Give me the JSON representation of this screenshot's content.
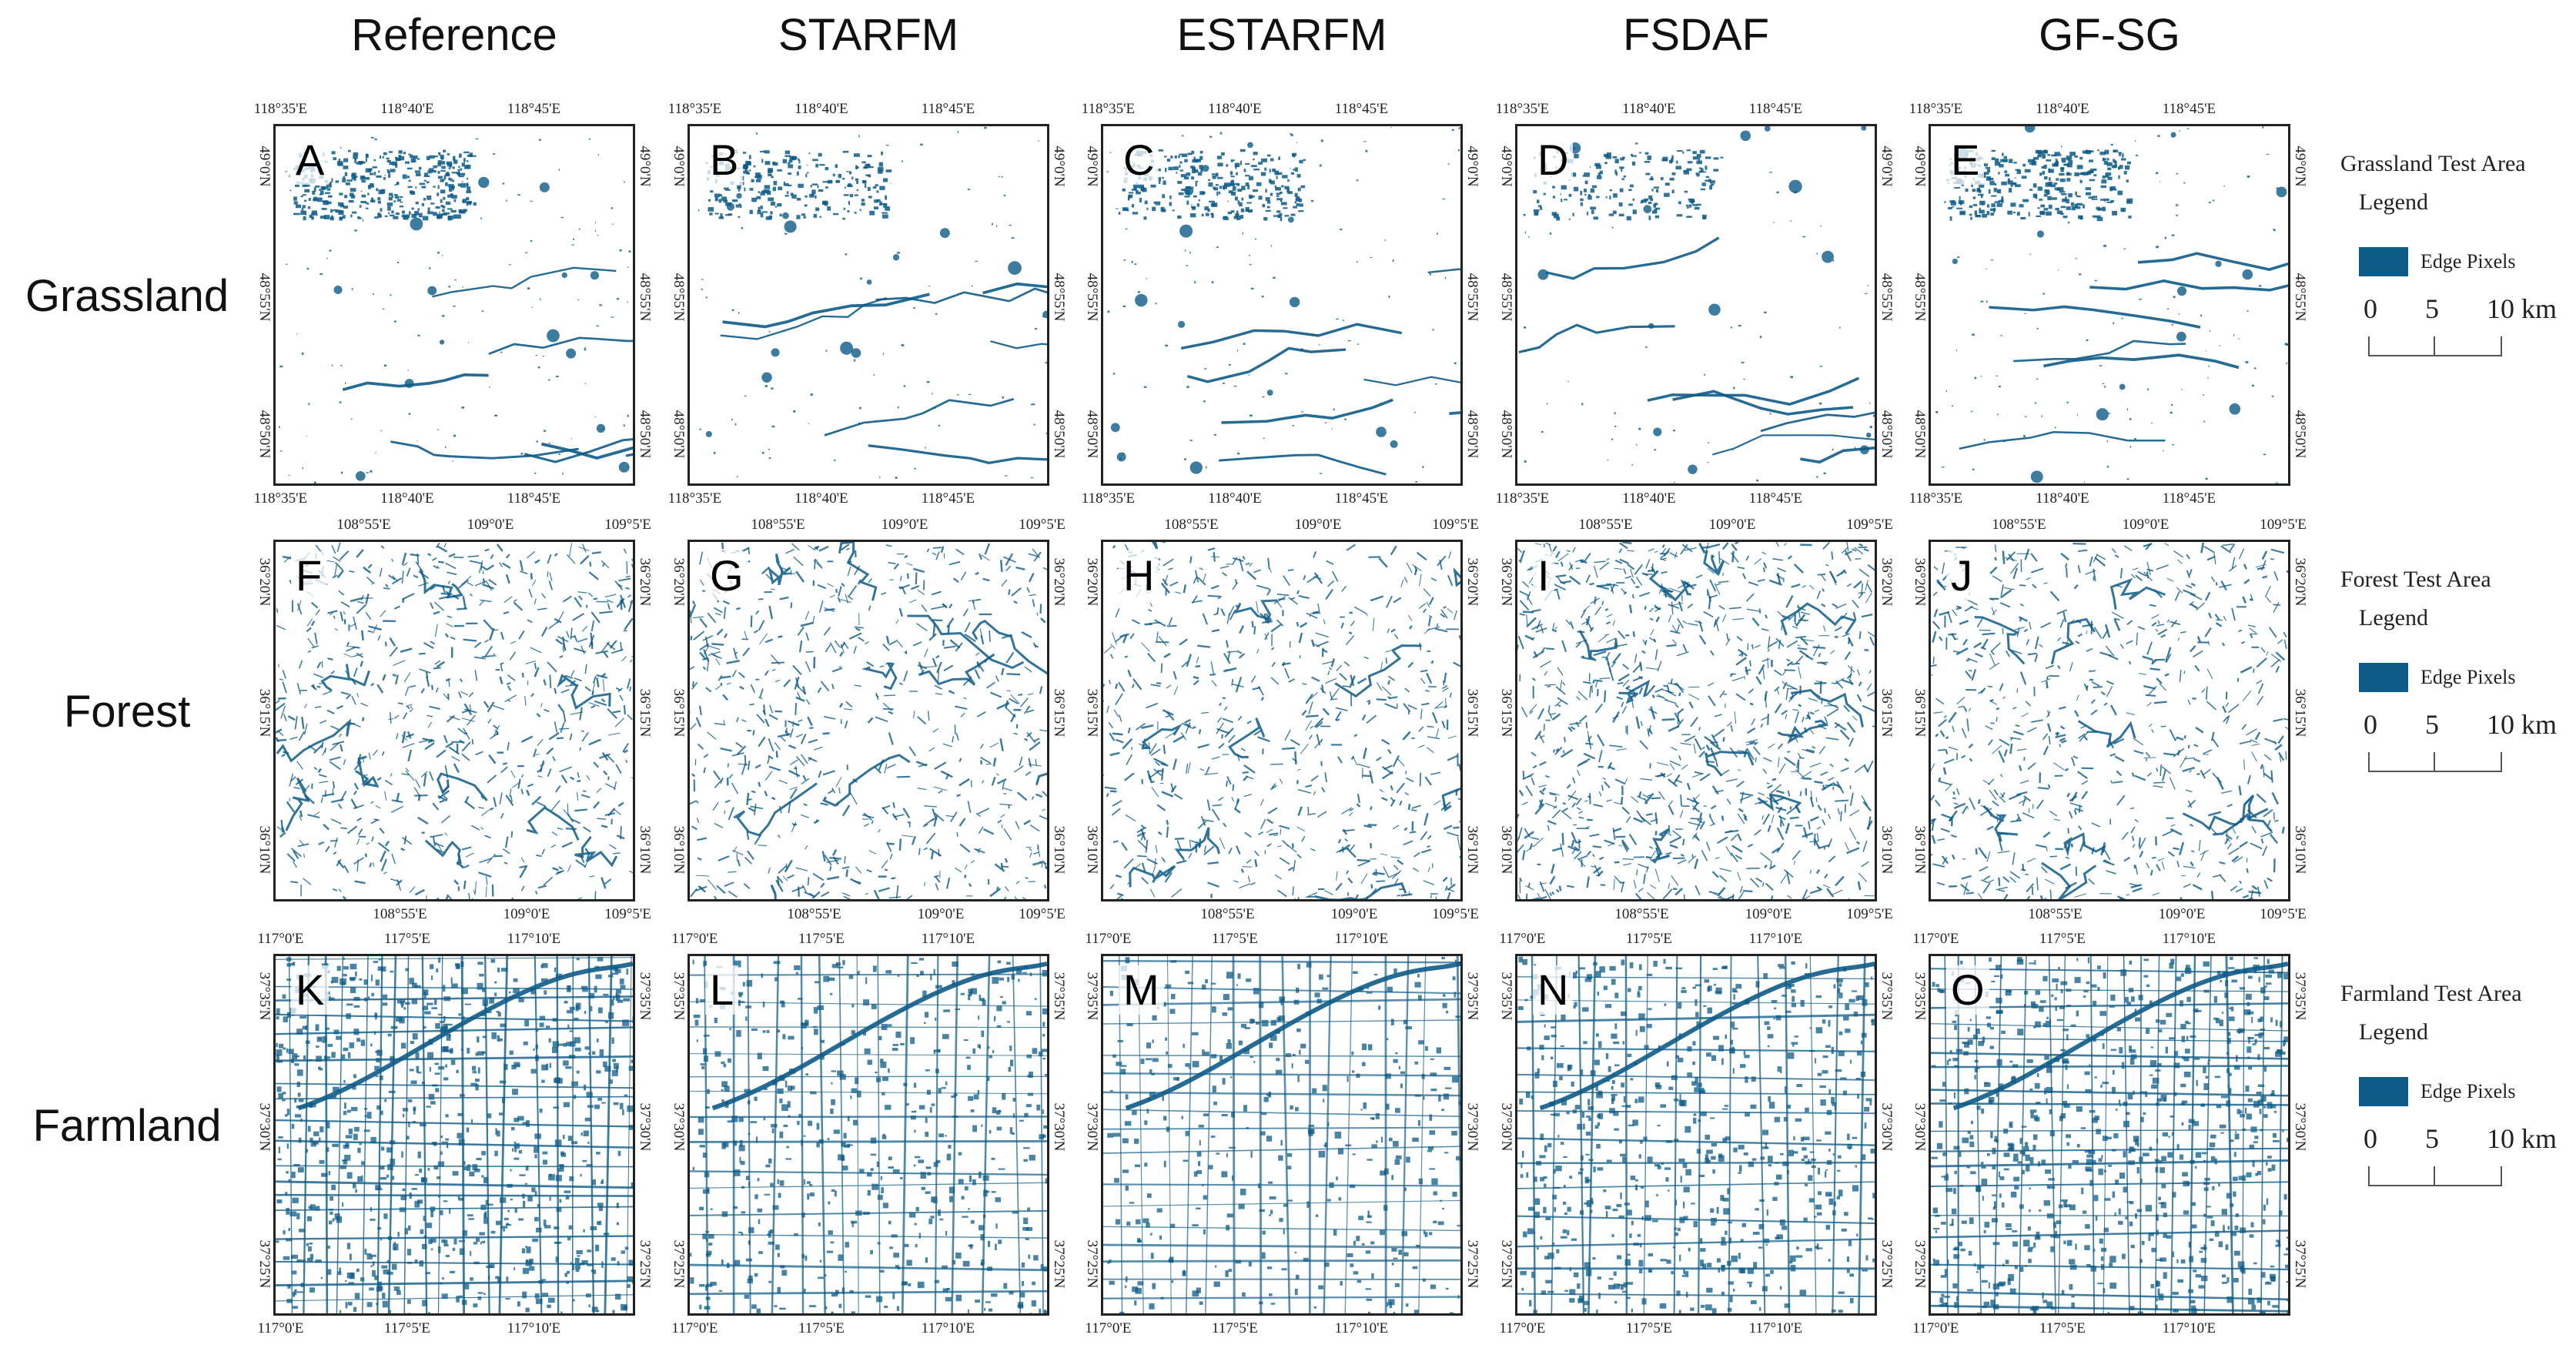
{
  "colors": {
    "edge": "#0d5b87",
    "frame": "#222222"
  },
  "methods": [
    "Reference",
    "STARFM",
    "ESTARFM",
    "FSDAF",
    "GF-SG"
  ],
  "rows": [
    {
      "label": "Grassland",
      "letters": [
        "A",
        "B",
        "C",
        "D",
        "E"
      ],
      "lon_top": [
        "118°35'E",
        "118°40'E",
        "118°45'E"
      ],
      "lon_bottom": [
        "118°35'E",
        "118°40'E",
        "118°45'E"
      ],
      "lat_right": [
        "49°0'N",
        "48°55'N",
        "48°50'N"
      ],
      "legend_title": "Grassland Test Area",
      "pattern": "grassland",
      "density": [
        0.16,
        0.1,
        0.12,
        0.08,
        0.14
      ]
    },
    {
      "label": "Forest",
      "letters": [
        "F",
        "G",
        "H",
        "I",
        "J"
      ],
      "lon_top": [
        "108°55'E",
        "109°0'E",
        "109°5'E"
      ],
      "lon_bottom": [
        "108°55'E",
        "109°0'E",
        "109°5'E"
      ],
      "lat_right": [
        "36°20'N",
        "36°15'N",
        "36°10'N"
      ],
      "legend_title": "Forest Test Area",
      "pattern": "forest",
      "density": [
        0.45,
        0.4,
        0.4,
        0.6,
        0.42
      ]
    },
    {
      "label": "Farmland",
      "letters": [
        "K",
        "L",
        "M",
        "N",
        "O"
      ],
      "lon_top": [
        "117°0'E",
        "117°5'E",
        "117°10'E"
      ],
      "lon_bottom": [
        "117°0'E",
        "117°5'E",
        "117°10'E"
      ],
      "lat_right": [
        "37°35'N",
        "37°30'N",
        "37°25'N"
      ],
      "legend_title": "Farmland Test Area",
      "pattern": "farmland",
      "density": [
        0.62,
        0.42,
        0.3,
        0.5,
        0.6
      ]
    }
  ],
  "legend": {
    "heading": "Legend",
    "item": "Edge Pixels",
    "scale": [
      "0",
      "5",
      "10 km"
    ]
  }
}
